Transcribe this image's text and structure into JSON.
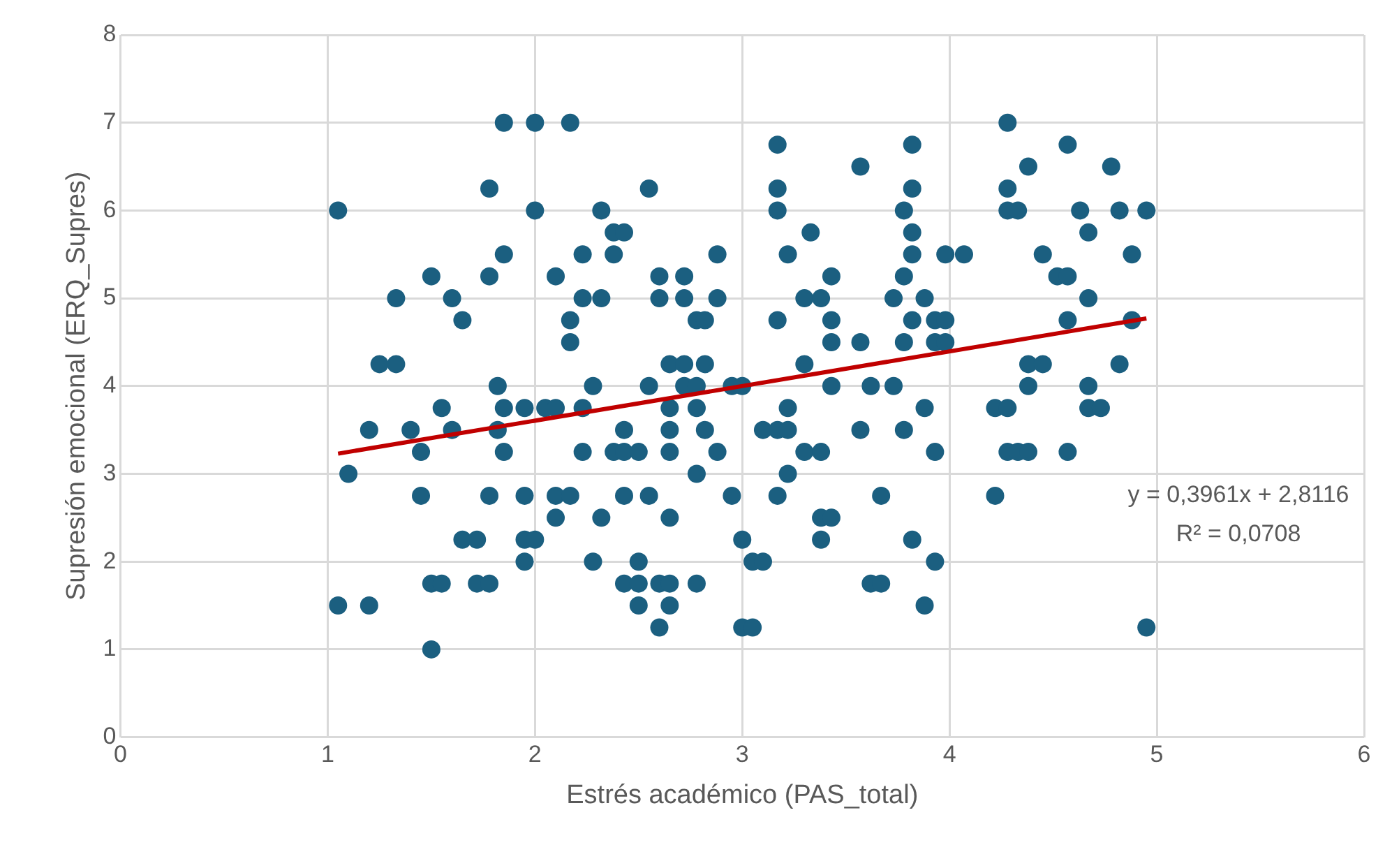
{
  "chart_data": {
    "type": "scatter",
    "xlabel": "Estrés académico (PAS_total)",
    "ylabel": "Supresión emocional (ERQ_Supres)",
    "xlim": [
      0,
      6
    ],
    "xticks": [
      0,
      1,
      2,
      3,
      4,
      5,
      6
    ],
    "ylim": [
      0,
      8
    ],
    "yticks": [
      0,
      1,
      2,
      3,
      4,
      5,
      6,
      7,
      8
    ],
    "grid": true,
    "annotations": [
      "y = 0,3961x + 2,8116",
      "R² = 0,0708"
    ],
    "series": [
      {
        "color": "#1b5f80",
        "marker": "circle",
        "x": [
          1.05,
          1.05,
          1.1,
          1.2,
          1.2,
          1.25,
          1.33,
          1.33,
          1.4,
          1.45,
          1.45,
          1.5,
          1.5,
          1.5,
          1.55,
          1.55,
          1.6,
          1.6,
          1.65,
          1.65,
          1.72,
          1.72,
          1.78,
          1.78,
          1.78,
          1.78,
          1.82,
          1.82,
          1.85,
          1.85,
          1.85,
          1.85,
          1.95,
          1.95,
          1.95,
          1.95,
          2.0,
          2.0,
          2.0,
          2.05,
          2.1,
          2.1,
          2.1,
          2.1,
          2.17,
          2.17,
          2.17,
          2.17,
          2.23,
          2.23,
          2.23,
          2.23,
          2.28,
          2.28,
          2.32,
          2.32,
          2.32,
          2.38,
          2.38,
          2.38,
          2.43,
          2.43,
          2.43,
          2.43,
          2.43,
          2.5,
          2.5,
          2.5,
          2.5,
          2.55,
          2.55,
          2.55,
          2.6,
          2.6,
          2.6,
          2.6,
          2.65,
          2.65,
          2.65,
          2.65,
          2.65,
          2.65,
          2.65,
          2.72,
          2.72,
          2.72,
          2.72,
          2.78,
          2.78,
          2.78,
          2.78,
          2.78,
          2.82,
          2.82,
          2.82,
          2.88,
          2.88,
          2.88,
          2.95,
          2.95,
          3.0,
          3.0,
          3.0,
          3.05,
          3.05,
          3.1,
          3.1,
          3.17,
          3.17,
          3.17,
          3.17,
          3.17,
          3.17,
          3.22,
          3.22,
          3.22,
          3.22,
          3.3,
          3.3,
          3.3,
          3.33,
          3.38,
          3.38,
          3.38,
          3.38,
          3.43,
          3.43,
          3.43,
          3.43,
          3.43,
          3.57,
          3.57,
          3.57,
          3.62,
          3.62,
          3.67,
          3.67,
          3.73,
          3.73,
          3.78,
          3.78,
          3.78,
          3.78,
          3.82,
          3.82,
          3.82,
          3.82,
          3.82,
          3.82,
          3.88,
          3.88,
          3.88,
          3.93,
          3.93,
          3.93,
          3.93,
          3.98,
          3.98,
          3.98,
          4.07,
          4.22,
          4.22,
          4.28,
          4.28,
          4.28,
          4.28,
          4.28,
          4.33,
          4.33,
          4.38,
          4.38,
          4.38,
          4.38,
          4.45,
          4.45,
          4.52,
          4.57,
          4.57,
          4.57,
          4.57,
          4.63,
          4.67,
          4.67,
          4.67,
          4.67,
          4.73,
          4.78,
          4.82,
          4.82,
          4.88,
          4.88,
          4.95,
          4.95
        ],
        "values": [
          6,
          1.5,
          3,
          3.5,
          1.5,
          4.25,
          4.25,
          5,
          3.5,
          3.25,
          2.75,
          5.25,
          1.75,
          1,
          3.75,
          1.75,
          5,
          3.5,
          4.75,
          2.25,
          2.25,
          1.75,
          6.25,
          5.25,
          2.75,
          1.75,
          4,
          3.5,
          7,
          5.5,
          3.75,
          3.25,
          3.75,
          2.75,
          2.25,
          2,
          7,
          6,
          2.25,
          3.75,
          5.25,
          3.75,
          2.75,
          2.5,
          7,
          4.75,
          4.5,
          2.75,
          5,
          5.5,
          3.75,
          3.25,
          4,
          2,
          6,
          5,
          2.5,
          5.75,
          5.5,
          3.25,
          5.75,
          3.25,
          3.5,
          2.75,
          1.75,
          1.75,
          1.5,
          2,
          3.25,
          6.25,
          4,
          2.75,
          5.25,
          5,
          1.25,
          1.75,
          4.25,
          3.75,
          3.5,
          3.25,
          2.5,
          1.75,
          1.5,
          5.25,
          5,
          4,
          4.25,
          4.75,
          4,
          3.75,
          3,
          1.75,
          4.75,
          4.25,
          3.5,
          5.5,
          5,
          3.25,
          4,
          2.75,
          4,
          2.25,
          1.25,
          2,
          1.25,
          3.5,
          2,
          6.75,
          6.25,
          6,
          4.75,
          3.5,
          2.75,
          5.5,
          3.75,
          3.5,
          3,
          5,
          4.25,
          3.25,
          5.75,
          5,
          3.25,
          2.5,
          2.25,
          5.25,
          4.75,
          4.5,
          4,
          2.5,
          6.5,
          4.5,
          3.5,
          4,
          1.75,
          2.75,
          1.75,
          5,
          4,
          6,
          5.25,
          4.5,
          3.5,
          6.75,
          6.25,
          5.75,
          5.5,
          4.75,
          2.25,
          5,
          3.75,
          1.5,
          4.75,
          4.5,
          3.25,
          2,
          5.5,
          4.75,
          4.5,
          5.5,
          3.75,
          2.75,
          7,
          6.25,
          6,
          3.75,
          3.25,
          6,
          3.25,
          6.5,
          4.25,
          4,
          3.25,
          5.5,
          4.25,
          5.25,
          6.75,
          5.25,
          4.75,
          3.25,
          6,
          5.75,
          5,
          4,
          3.75,
          3.75,
          6.5,
          6,
          4.25,
          5.5,
          4.75,
          6,
          1.25
        ]
      },
      {
        "type": "line",
        "color": "#c00000",
        "x": [
          1.05,
          4.95
        ],
        "values": [
          3.23,
          4.77
        ]
      }
    ]
  }
}
